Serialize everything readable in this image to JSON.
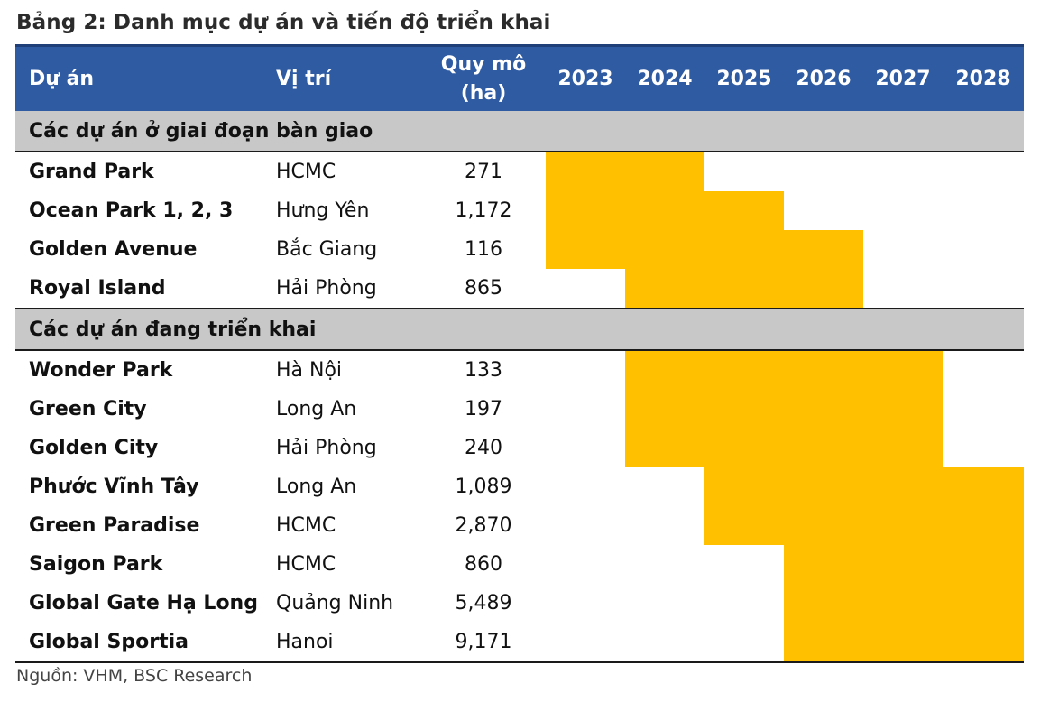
{
  "title": "Bảng 2: Danh mục dự án và tiến độ triển khai",
  "header": {
    "project": "Dự án",
    "location": "Vị trí",
    "scale_line1": "Quy mô",
    "scale_line2": "(ha)",
    "years": [
      "2023",
      "2024",
      "2025",
      "2026",
      "2027",
      "2028"
    ]
  },
  "colors": {
    "header_bg": "#2f5ba3",
    "section_bg": "#c8c8c8",
    "bar": "#ffc000",
    "bar_light": "#ffc62d"
  },
  "sections": [
    {
      "label": "Các dự án ở giai đoạn bàn giao",
      "rows": [
        {
          "name": "Grand Park",
          "location": "HCMC",
          "size": "271",
          "from": 2023,
          "to": 2024
        },
        {
          "name": "Ocean Park 1, 2, 3",
          "location": "Hưng Yên",
          "size": "1,172",
          "from": 2023,
          "to": 2025
        },
        {
          "name": "Golden Avenue",
          "location": "Bắc Giang",
          "size": "116",
          "from": 2023,
          "to": 2026
        },
        {
          "name": "Royal Island",
          "location": "Hải Phòng",
          "size": "865",
          "from": 2024,
          "to": 2026
        }
      ]
    },
    {
      "label": "Các dự án đang triển khai",
      "rows": [
        {
          "name": "Wonder Park",
          "location": "Hà Nội",
          "size": "133",
          "from": 2024,
          "to": 2027
        },
        {
          "name": "Green City",
          "location": "Long An",
          "size": "197",
          "from": 2024,
          "to": 2027
        },
        {
          "name": "Golden City",
          "location": "Hải Phòng",
          "size": "240",
          "from": 2024,
          "to": 2027
        },
        {
          "name": "Phước Vĩnh Tây",
          "location": "Long An",
          "size": "1,089",
          "from": 2025,
          "to": 2028
        },
        {
          "name": "Green Paradise",
          "location": "HCMC",
          "size": "2,870",
          "from": 2025,
          "to": 2028
        },
        {
          "name": "Saigon Park",
          "location": "HCMC",
          "size": "860",
          "from": 2026,
          "to": 2028
        },
        {
          "name": "Global Gate Hạ Long",
          "location": "Quảng Ninh",
          "size": "5,489",
          "from": 2026,
          "to": 2028
        },
        {
          "name": "Global Sportia",
          "location": "Hanoi",
          "size": "9,171",
          "from": 2026,
          "to": 2028
        }
      ]
    }
  ],
  "source": "Nguồn: VHM, BSC Research"
}
